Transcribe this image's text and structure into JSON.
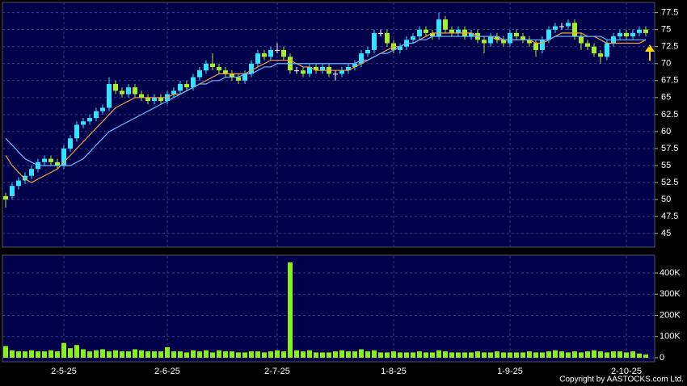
{
  "chart_data": [
    {
      "type": "candlestick",
      "up_color": "#33e3ff",
      "down_color": "#a3ee30",
      "doji_color": "#ffffff",
      "grid": true,
      "open": [
        50.5,
        50.5,
        52,
        52.8,
        53.5,
        54.5,
        55.5,
        56,
        55.5,
        55,
        57.5,
        59,
        61,
        61.5,
        62,
        63,
        63.5,
        67,
        66,
        65.5,
        66.5,
        65.5,
        65,
        64.5,
        65,
        64.5,
        65.5,
        66,
        67,
        66.5,
        68,
        69,
        70,
        69.5,
        69,
        68.5,
        68,
        67.5,
        68.5,
        70,
        71.5,
        71,
        72,
        72,
        71,
        69,
        69,
        68.5,
        69.5,
        69,
        69.5,
        68.5,
        68.5,
        69,
        69.5,
        70,
        71.5,
        72,
        74.5,
        74.5,
        73,
        72,
        72.5,
        73.5,
        74,
        75,
        74.5,
        74,
        76.5,
        75,
        74.5,
        75,
        74,
        74.5,
        73.5,
        73,
        74,
        73.5,
        73,
        74.5,
        74,
        73.5,
        73,
        72,
        73.5,
        75,
        75.5,
        75.5,
        76,
        74,
        73,
        72.5,
        71.5,
        71,
        73,
        74,
        74.5,
        74,
        74.5,
        75
      ],
      "high": [
        51,
        52.5,
        53.3,
        54,
        55,
        56,
        56.5,
        56.5,
        56,
        58,
        59.5,
        61.5,
        62,
        62.5,
        63.5,
        64,
        68,
        67.5,
        66.5,
        67,
        67,
        66,
        65.5,
        65.5,
        65.5,
        66,
        66.5,
        67.5,
        67.5,
        68.5,
        69.5,
        70.5,
        71.5,
        70,
        69.5,
        69,
        68.5,
        69,
        70.5,
        72,
        72,
        72.5,
        73,
        72.5,
        71.5,
        69.5,
        69.5,
        70,
        70,
        70,
        70,
        69,
        69.5,
        70,
        70.5,
        72,
        72.5,
        75,
        75,
        75,
        73.5,
        73,
        74,
        74.5,
        75.5,
        75.5,
        75,
        77.5,
        77,
        75.5,
        75.5,
        75.5,
        75,
        75,
        74,
        74.5,
        74.5,
        74,
        75,
        75,
        74.5,
        74,
        73.5,
        74,
        75.5,
        76,
        76,
        76.5,
        76.5,
        74.5,
        73.5,
        73,
        72,
        73.5,
        74.5,
        75,
        75,
        75,
        75.5,
        75.5
      ],
      "low": [
        48.8,
        50,
        51.5,
        52.3,
        53,
        54,
        55,
        55,
        54.5,
        54.5,
        57,
        58.5,
        60.5,
        61,
        61.5,
        62.5,
        63,
        65.5,
        65,
        65,
        65,
        64.5,
        64,
        64,
        64,
        64,
        65,
        65.5,
        66,
        66,
        67.5,
        68.5,
        69,
        68.5,
        68,
        67.5,
        67,
        67,
        68,
        69.5,
        70.5,
        70.5,
        71.5,
        70.5,
        68.5,
        68.5,
        68,
        68,
        68.5,
        68.5,
        68,
        67.5,
        68,
        68.5,
        69,
        69.5,
        71,
        71.5,
        74,
        72.5,
        71.5,
        71.5,
        72,
        73,
        73.5,
        74,
        73.5,
        73.5,
        74.5,
        74,
        74,
        73.5,
        73.5,
        73,
        71.5,
        72.5,
        73,
        72.5,
        72.5,
        73.5,
        73,
        72.5,
        71,
        71.5,
        73,
        74.5,
        75,
        75,
        73.5,
        72,
        72,
        71,
        70,
        70.5,
        72.5,
        73.5,
        73.5,
        73.5,
        74,
        74
      ],
      "close": [
        50,
        52,
        52.8,
        53.5,
        54.5,
        55.5,
        56,
        55.5,
        55,
        57.5,
        59,
        61,
        61.5,
        62,
        63,
        63.5,
        67,
        66,
        65.5,
        66.5,
        65.5,
        65,
        64.5,
        65,
        64.5,
        65.5,
        66,
        67,
        66.5,
        68,
        69,
        70,
        69.5,
        69,
        68.5,
        68,
        67.5,
        68.5,
        70,
        71.5,
        71,
        72,
        72,
        71,
        69,
        69,
        68.5,
        69.5,
        69,
        69.5,
        68.5,
        68.5,
        69,
        69.5,
        70,
        71.5,
        72,
        74.5,
        74.5,
        73,
        72,
        72.5,
        73.5,
        74,
        75,
        74.5,
        74,
        76.5,
        75,
        74.5,
        75,
        74,
        74.5,
        73.5,
        73,
        74,
        73.5,
        73,
        74.5,
        74,
        73.5,
        73,
        72,
        73.5,
        75,
        75.5,
        75.5,
        76,
        74,
        73,
        72.5,
        71.5,
        71,
        73,
        74,
        74.5,
        74,
        74.5,
        75,
        74.5
      ],
      "series": [
        {
          "color": "#f0a040",
          "values": [
            56.5,
            55,
            54,
            53,
            52.5,
            53,
            53.5,
            54,
            54.5,
            55.5,
            56.5,
            57.5,
            58.5,
            59.5,
            60.5,
            61.5,
            62.5,
            63.5,
            64,
            64.5,
            65,
            65,
            65,
            65,
            65,
            65,
            65.5,
            65.5,
            66,
            66.5,
            67,
            67.5,
            68,
            68.5,
            68.5,
            68.5,
            68.5,
            68.5,
            69,
            69.5,
            70,
            70.5,
            70.5,
            70.5,
            70.5,
            70,
            69.5,
            69.5,
            69,
            69,
            69,
            69,
            69,
            69,
            69.5,
            70,
            70.5,
            71,
            71.5,
            72,
            72.5,
            72.5,
            73,
            73,
            73.5,
            74,
            74.5,
            74.5,
            74.5,
            74.5,
            74.5,
            74.5,
            74.5,
            74,
            74,
            74,
            73.5,
            73.5,
            73.5,
            73.5,
            73.5,
            73.5,
            73,
            73,
            73.5,
            74,
            74.5,
            74.5,
            74.5,
            74.5,
            74,
            74,
            73.5,
            73,
            73,
            73,
            73,
            73,
            73,
            73.5
          ]
        },
        {
          "color": "#66b8ff",
          "values": [
            59,
            58,
            57,
            56,
            55.5,
            55,
            55,
            55,
            55,
            55,
            55,
            55.5,
            56,
            57,
            58,
            59,
            60,
            60.5,
            61,
            61.5,
            62,
            62.5,
            63,
            63.5,
            64,
            64.5,
            65,
            65.5,
            66,
            66.5,
            67,
            67,
            67.5,
            67.5,
            68,
            68,
            68,
            68.5,
            68.5,
            69,
            69.5,
            69.5,
            70,
            70,
            70,
            70,
            70,
            70,
            70,
            70,
            70,
            70,
            70,
            70,
            70,
            70.5,
            70.5,
            71,
            71.5,
            71.5,
            72,
            72.5,
            73,
            73,
            73.5,
            73.5,
            74,
            74,
            74,
            74,
            74,
            74,
            74,
            74,
            74,
            74,
            74,
            73.5,
            73.5,
            73.5,
            73.5,
            73.5,
            73.5,
            73.5,
            73.5,
            74,
            74,
            74,
            74,
            74,
            74,
            74,
            74,
            73.5,
            73.5,
            73.5,
            73.5,
            73.5,
            73.5,
            73.5
          ]
        }
      ],
      "ylim": [
        43,
        79
      ],
      "yticks": [
        45,
        47.5,
        50,
        52.5,
        55,
        57.5,
        60,
        62.5,
        65,
        67.5,
        70,
        72.5,
        75,
        77.5
      ]
    },
    {
      "type": "bar",
      "color": "#88f020",
      "grid": true,
      "categories": [
        null,
        null,
        null,
        null,
        null,
        null,
        null,
        null,
        null,
        "2-5-25",
        null,
        null,
        null,
        null,
        null,
        null,
        null,
        null,
        null,
        null,
        null,
        null,
        null,
        null,
        null,
        "2-6-25",
        null,
        null,
        null,
        null,
        null,
        null,
        null,
        null,
        null,
        null,
        null,
        null,
        null,
        null,
        null,
        null,
        "2-7-25",
        null,
        null,
        null,
        null,
        null,
        null,
        null,
        null,
        null,
        null,
        null,
        null,
        null,
        null,
        null,
        null,
        null,
        "1-8-25",
        null,
        null,
        null,
        null,
        null,
        null,
        null,
        null,
        null,
        null,
        null,
        null,
        null,
        null,
        null,
        null,
        null,
        "1-9-25",
        null,
        null,
        null,
        null,
        null,
        null,
        null,
        null,
        null,
        null,
        null,
        null,
        null,
        null,
        null,
        null,
        null,
        "2-10-25",
        null,
        null,
        null
      ],
      "values": [
        55000,
        35000,
        30000,
        30000,
        35000,
        30000,
        30000,
        35000,
        30000,
        70000,
        45000,
        60000,
        40000,
        30000,
        35000,
        40000,
        30000,
        35000,
        30000,
        30000,
        40000,
        35000,
        30000,
        30000,
        30000,
        50000,
        30000,
        30000,
        25000,
        35000,
        30000,
        35000,
        25000,
        35000,
        30000,
        30000,
        25000,
        25000,
        30000,
        30000,
        25000,
        30000,
        35000,
        30000,
        450000,
        35000,
        30000,
        35000,
        25000,
        25000,
        25000,
        30000,
        35000,
        30000,
        30000,
        40000,
        30000,
        35000,
        25000,
        25000,
        30000,
        25000,
        25000,
        25000,
        30000,
        25000,
        25000,
        35000,
        30000,
        25000,
        25000,
        25000,
        25000,
        30000,
        25000,
        25000,
        30000,
        25000,
        25000,
        25000,
        25000,
        30000,
        25000,
        25000,
        30000,
        35000,
        30000,
        25000,
        30000,
        25000,
        30000,
        35000,
        30000,
        25000,
        30000,
        30000,
        25000,
        30000,
        20000,
        15000
      ],
      "ylim": [
        0,
        480000
      ],
      "yticks": [
        {
          "value": 0,
          "label": "0"
        },
        {
          "value": 100000,
          "label": "100K"
        },
        {
          "value": 200000,
          "label": "200K"
        },
        {
          "value": 300000,
          "label": "300K"
        },
        {
          "value": 400000,
          "label": "400K"
        }
      ]
    }
  ],
  "footer": "Copyright by AASTOCKS.com Ltd."
}
